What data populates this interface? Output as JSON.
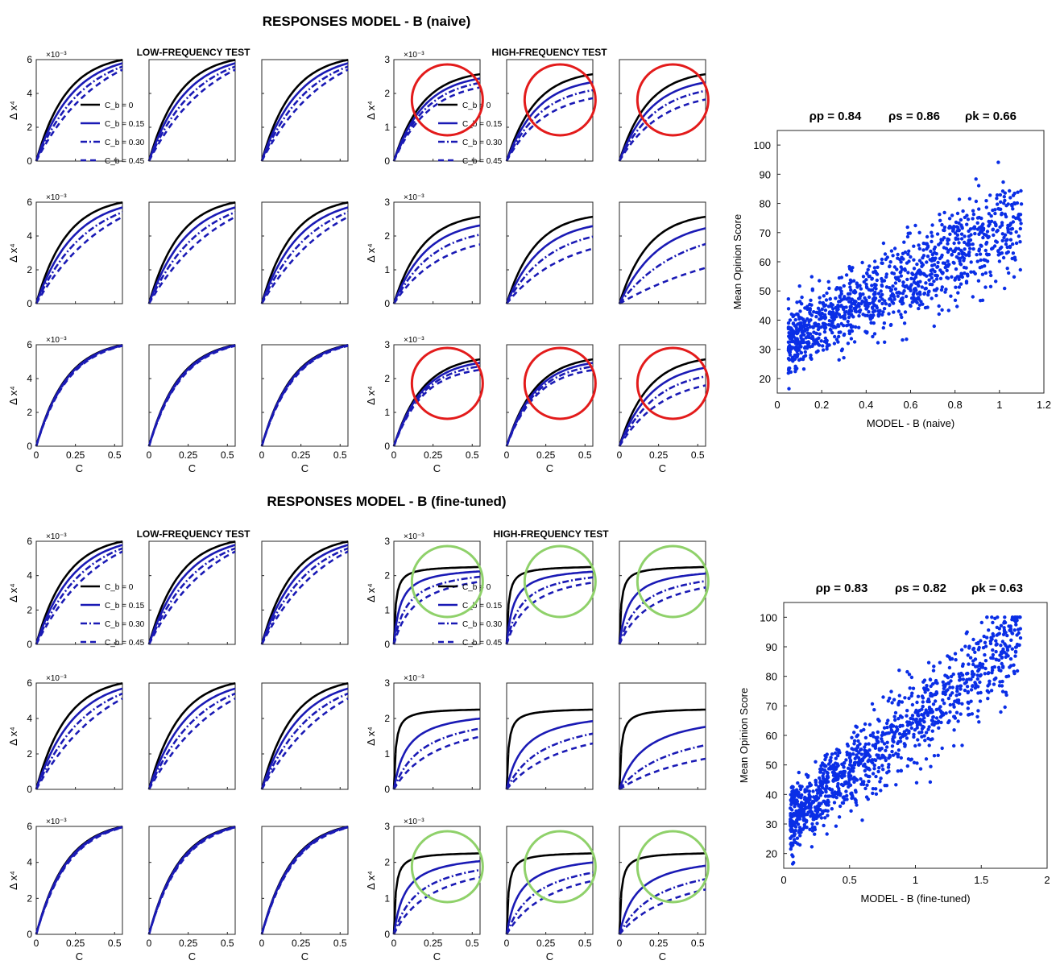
{
  "sections": [
    {
      "title": "RESPONSES  MODEL - B  (naive)",
      "low_label": "LOW-FREQUENCY TEST",
      "high_label": "HIGH-FREQUENCY TEST",
      "highlight_color": "#e31b1b"
    },
    {
      "title": "RESPONSES  MODEL - B    (fine-tuned)",
      "low_label": "LOW-FREQUENCY TEST",
      "high_label": "HIGH-FREQUENCY TEST",
      "highlight_color": "#8fd16a"
    }
  ],
  "panel_axes": {
    "ylabel": "Δ x⁴",
    "xlabel": "C",
    "x_ticks": [
      "0",
      "0.25",
      "0.5"
    ],
    "low_y_ticks": [
      "0",
      "2",
      "4",
      "6"
    ],
    "high_y_ticks": [
      "0",
      "1",
      "2",
      "3"
    ],
    "y_exponent": "×10⁻³"
  },
  "legend": [
    "C_b = 0",
    "C_b = 0.15",
    "C_b = 0.30",
    "C_b = 0.45"
  ],
  "colors": {
    "black": "#000000",
    "blue": "#1a1ab5",
    "scatter": "#0a2ee6"
  },
  "chart_data": [
    {
      "type": "line",
      "title": "LOW-FREQUENCY TEST",
      "model": "naive",
      "xlabel": "C",
      "ylabel": "Δ x⁴",
      "xlim": [
        0,
        0.55
      ],
      "ylim": [
        0,
        0.006
      ],
      "series": [
        {
          "name": "C_b = 0",
          "x": [
            0,
            0.05,
            0.1,
            0.15,
            0.2,
            0.25,
            0.3,
            0.35,
            0.4,
            0.45
          ],
          "y": [
            0,
            0.0018,
            0.003,
            0.0039,
            0.0046,
            0.0051,
            0.0055,
            0.0058,
            0.006,
            0.006
          ]
        },
        {
          "name": "C_b = 0.15",
          "x": [
            0,
            0.05,
            0.1,
            0.15,
            0.2,
            0.25,
            0.3,
            0.35,
            0.4,
            0.45,
            0.5
          ],
          "y": [
            0,
            0.0012,
            0.0022,
            0.003,
            0.0037,
            0.0043,
            0.0048,
            0.0052,
            0.0056,
            0.0059,
            0.006
          ]
        },
        {
          "name": "C_b = 0.30",
          "x": [
            0,
            0.1,
            0.2,
            0.3,
            0.4,
            0.5
          ],
          "y": [
            0,
            0.0019,
            0.0033,
            0.0044,
            0.0052,
            0.0058
          ]
        },
        {
          "name": "C_b = 0.45",
          "x": [
            0,
            0.1,
            0.2,
            0.3,
            0.4,
            0.5,
            0.55
          ],
          "y": [
            0,
            0.0016,
            0.0029,
            0.0039,
            0.0047,
            0.0053,
            0.0056
          ]
        }
      ]
    },
    {
      "type": "line",
      "title": "HIGH-FREQUENCY TEST",
      "model": "naive",
      "xlabel": "C",
      "ylabel": "Δ x⁴",
      "xlim": [
        0,
        0.55
      ],
      "ylim": [
        0,
        0.003
      ],
      "series": [
        {
          "name": "C_b = 0",
          "x": [
            0,
            0.1,
            0.2,
            0.3,
            0.4,
            0.5,
            0.55
          ],
          "y": [
            0,
            0.0011,
            0.0017,
            0.0021,
            0.0023,
            0.0025,
            0.0026
          ]
        },
        {
          "name": "C_b = 0.15",
          "x": [
            0,
            0.1,
            0.2,
            0.3,
            0.4,
            0.5,
            0.55
          ],
          "y": [
            0,
            0.001,
            0.0016,
            0.002,
            0.0022,
            0.0024,
            0.0025
          ]
        },
        {
          "name": "C_b = 0.30",
          "x": [
            0,
            0.1,
            0.2,
            0.3,
            0.4,
            0.5,
            0.55
          ],
          "y": [
            0,
            0.0009,
            0.0014,
            0.0018,
            0.0021,
            0.0023,
            0.0024
          ]
        },
        {
          "name": "C_b = 0.45",
          "x": [
            0,
            0.1,
            0.2,
            0.3,
            0.4,
            0.5,
            0.55
          ],
          "y": [
            0,
            0.0008,
            0.0013,
            0.0017,
            0.002,
            0.0022,
            0.0023
          ]
        }
      ]
    },
    {
      "type": "line",
      "title": "HIGH-FREQUENCY TEST",
      "model": "fine-tuned",
      "xlabel": "C",
      "ylabel": "Δ x⁴",
      "xlim": [
        0,
        0.55
      ],
      "ylim": [
        0,
        0.003
      ],
      "series": [
        {
          "name": "C_b = 0",
          "x": [
            0,
            0.05,
            0.1,
            0.2,
            0.3,
            0.4,
            0.55
          ],
          "y": [
            0,
            0.0017,
            0.002,
            0.0022,
            0.00225,
            0.00225,
            0.00225
          ]
        },
        {
          "name": "C_b = 0.15",
          "x": [
            0,
            0.05,
            0.1,
            0.2,
            0.3,
            0.4,
            0.55
          ],
          "y": [
            0,
            0.0014,
            0.0017,
            0.0019,
            0.002,
            0.0021,
            0.0021
          ]
        },
        {
          "name": "C_b = 0.30",
          "x": [
            0,
            0.05,
            0.1,
            0.2,
            0.3,
            0.4,
            0.55
          ],
          "y": [
            0,
            0.0011,
            0.0014,
            0.0016,
            0.0018,
            0.0019,
            0.0019
          ]
        },
        {
          "name": "C_b = 0.45",
          "x": [
            0,
            0.05,
            0.1,
            0.2,
            0.3,
            0.4,
            0.55
          ],
          "y": [
            0,
            0.0009,
            0.0012,
            0.0014,
            0.0016,
            0.0017,
            0.0018
          ]
        }
      ]
    },
    {
      "type": "scatter",
      "title": "",
      "model": "naive",
      "stats": [
        "ρp = 0.84",
        "ρs = 0.86",
        "ρk = 0.66"
      ],
      "xlabel": "MODEL - B   (naive)",
      "ylabel": "Mean Opinion Score",
      "xlim": [
        0,
        1.2
      ],
      "ylim": [
        15,
        105
      ],
      "x_ticks": [
        "0",
        "0.2",
        "0.4",
        "0.6",
        "0.8",
        "1",
        "1.2"
      ],
      "y_ticks": [
        "20",
        "30",
        "40",
        "50",
        "60",
        "70",
        "80",
        "90",
        "100"
      ],
      "trend": {
        "x": [
          0.05,
          1.1
        ],
        "y": [
          32,
          75
        ],
        "n_points": 1160,
        "spread_mos": 7
      }
    },
    {
      "type": "scatter",
      "title": "",
      "model": "fine-tuned",
      "stats": [
        "ρp = 0.83",
        "ρs = 0.82",
        "ρk = 0.63"
      ],
      "xlabel": "MODEL - B (fine-tuned)",
      "ylabel": "Mean Opinion Score",
      "xlim": [
        0,
        2
      ],
      "ylim": [
        15,
        105
      ],
      "x_ticks": [
        "0",
        "0.5",
        "1",
        "1.5",
        "2"
      ],
      "y_ticks": [
        "20",
        "30",
        "40",
        "50",
        "60",
        "70",
        "80",
        "90",
        "100"
      ],
      "trend": {
        "x": [
          0.05,
          1.8
        ],
        "y": [
          32,
          92
        ],
        "n_points": 1160,
        "spread_mos": 7
      }
    }
  ]
}
